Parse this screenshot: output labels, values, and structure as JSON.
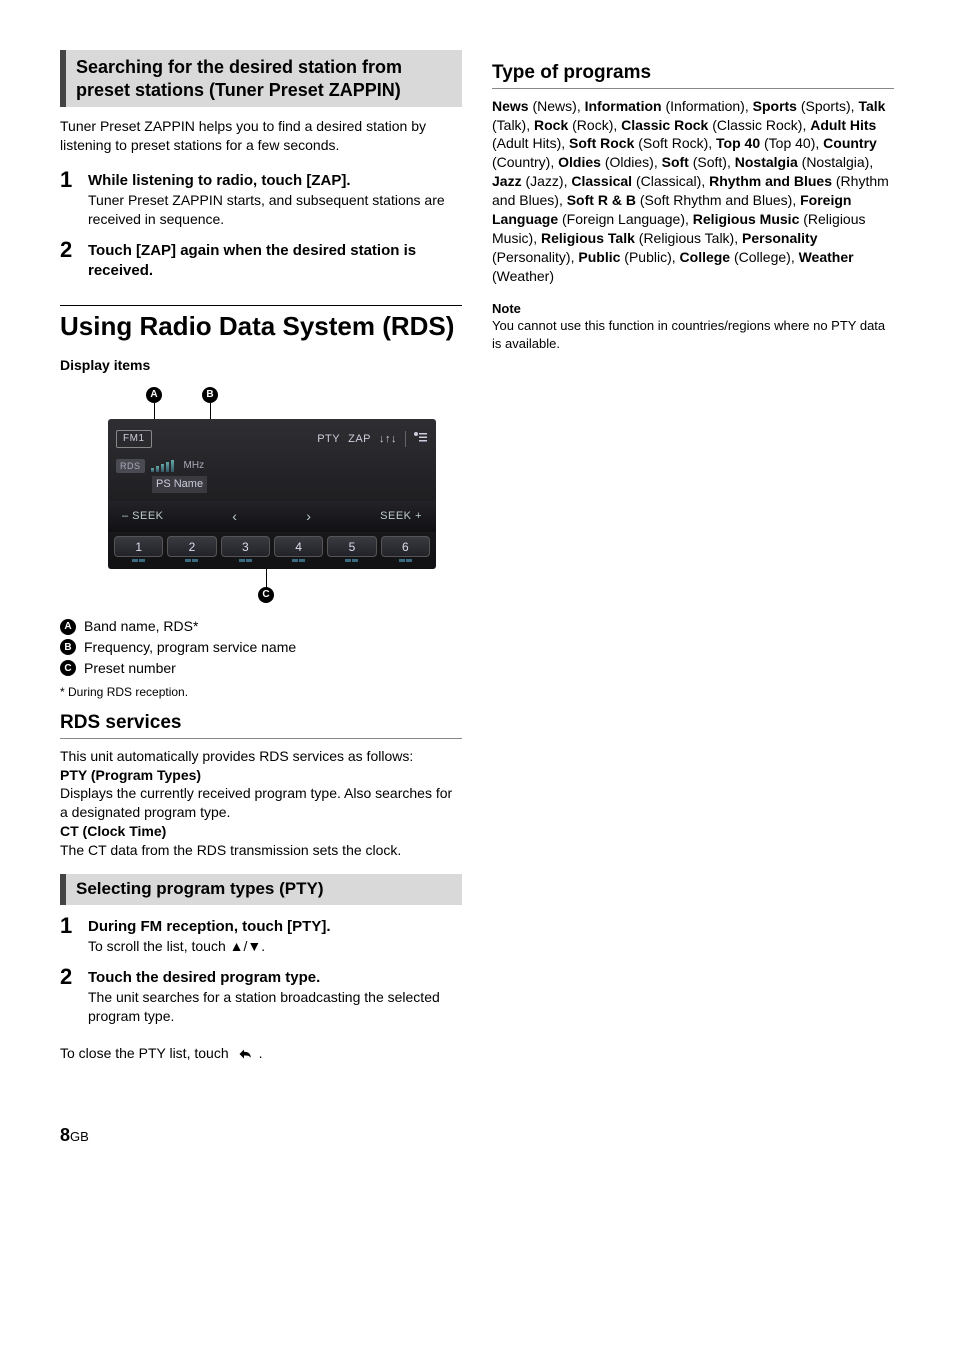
{
  "left": {
    "zappin_header": "Searching for the desired station from preset stations (Tuner Preset ZAPPIN)",
    "zappin_intro": "Tuner Preset ZAPPIN helps you to find a desired station by listening to preset stations for a few seconds.",
    "zappin_steps": [
      {
        "title": "While listening to radio, touch [ZAP].",
        "desc": "Tuner Preset ZAPPIN starts, and subsequent stations are received in sequence."
      },
      {
        "title": "Touch [ZAP] again when the desired station is received.",
        "desc": ""
      }
    ],
    "rds_title": "Using Radio Data System (RDS)",
    "display_items": "Display items",
    "legend": {
      "a": "Band name, RDS*",
      "b": "Frequency, program service name",
      "c": "Preset number"
    },
    "footnote": "* During RDS reception.",
    "rds_services_h": "RDS services",
    "rds_services_p": "This unit automatically provides RDS services as follows:",
    "pty_h": "PTY (Program Types)",
    "pty_p": "Displays the currently received program type. Also searches for a designated program type.",
    "ct_h": "CT (Clock Time)",
    "ct_p": "The CT data from the RDS transmission sets the clock.",
    "pty_header": "Selecting program types (PTY)",
    "pty_steps": [
      {
        "title": "During FM reception, touch [PTY].",
        "desc": "To scroll the list, touch ▲/▼."
      },
      {
        "title": "Touch the desired program type.",
        "desc": "The unit searches for a station broadcasting the selected program type."
      }
    ],
    "close_pty_pre": "To close the PTY list, touch ",
    "close_pty_post": "."
  },
  "right": {
    "types_h": "Type of programs",
    "types": [
      {
        "b": "News",
        "p": "News"
      },
      {
        "b": "Information",
        "p": "Information"
      },
      {
        "b": "Sports",
        "p": "Sports"
      },
      {
        "b": "Talk",
        "p": "Talk"
      },
      {
        "b": "Rock",
        "p": "Rock"
      },
      {
        "b": "Classic Rock",
        "p": "Classic Rock"
      },
      {
        "b": "Adult Hits",
        "p": "Adult Hits"
      },
      {
        "b": "Soft Rock",
        "p": "Soft Rock"
      },
      {
        "b": "Top 40",
        "p": "Top 40"
      },
      {
        "b": "Country",
        "p": "Country"
      },
      {
        "b": "Oldies",
        "p": "Oldies"
      },
      {
        "b": "Soft",
        "p": "Soft"
      },
      {
        "b": "Nostalgia",
        "p": "Nostalgia"
      },
      {
        "b": "Jazz",
        "p": "Jazz"
      },
      {
        "b": "Classical",
        "p": "Classical"
      },
      {
        "b": "Rhythm and Blues",
        "p": "Rhythm and Blues"
      },
      {
        "b": "Soft R & B",
        "p": "Soft Rhythm and Blues"
      },
      {
        "b": "Foreign Language",
        "p": "Foreign Language"
      },
      {
        "b": "Religious Music",
        "p": "Religious Music"
      },
      {
        "b": "Religious Talk",
        "p": "Religious Talk"
      },
      {
        "b": "Personality",
        "p": "Personality"
      },
      {
        "b": "Public",
        "p": "Public"
      },
      {
        "b": "College",
        "p": "College"
      },
      {
        "b": "Weather",
        "p": "Weather"
      }
    ],
    "note_h": "Note",
    "note_p": "You cannot use this function in countries/regions where no PTY data is available."
  },
  "radio": {
    "band": "FM1",
    "buttons": {
      "pty": "PTY",
      "zap": "ZAP"
    },
    "rds_badge": "RDS",
    "mhz": "MHz",
    "psname": "PS Name",
    "seek_minus": "– SEEK",
    "seek_plus": "SEEK +",
    "presets": [
      "1",
      "2",
      "3",
      "4",
      "5",
      "6"
    ]
  },
  "page": {
    "num": "8",
    "suffix": "GB"
  }
}
